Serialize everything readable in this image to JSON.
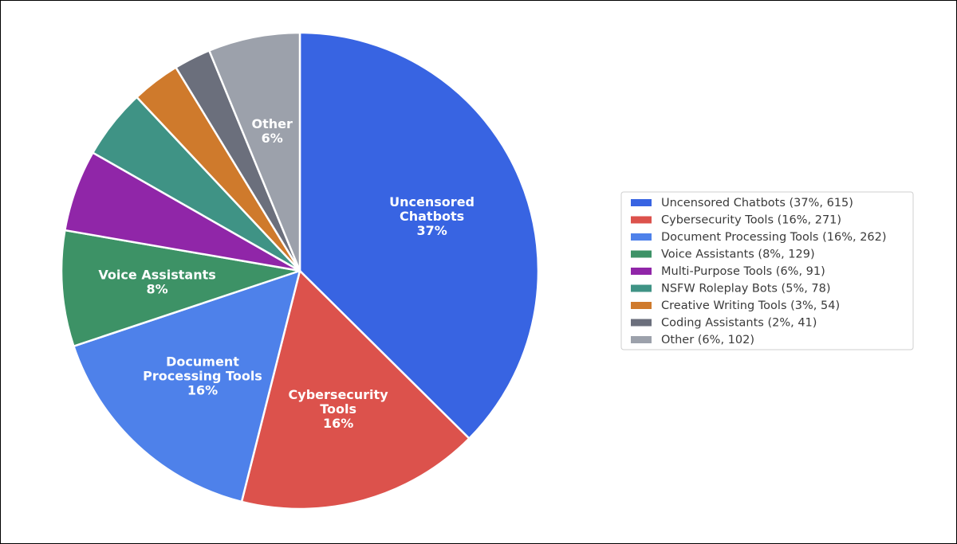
{
  "chart_data": {
    "type": "pie",
    "title": "",
    "start_angle_deg": 90,
    "direction": "clockwise",
    "legend_placement": "right",
    "slices": [
      {
        "name": "Uncensored Chatbots",
        "value": 615,
        "percent": "37%",
        "label_lines": [
          "Uncensored",
          "Chatbots",
          "37%"
        ],
        "legend_text": "Uncensored Chatbots  (37%, 615)",
        "color": "#3864e2"
      },
      {
        "name": "Cybersecurity Tools",
        "value": 271,
        "percent": "16%",
        "label_lines": [
          "Cybersecurity",
          "Tools",
          "16%"
        ],
        "legend_text": "Cybersecurity Tools  (16%, 271)",
        "color": "#dc524c"
      },
      {
        "name": "Document Processing Tools",
        "value": 262,
        "percent": "16%",
        "label_lines": [
          "Document",
          "Processing Tools",
          "16%"
        ],
        "legend_text": "Document Processing Tools  (16%, 262)",
        "color": "#4e81ea"
      },
      {
        "name": "Voice Assistants",
        "value": 129,
        "percent": "8%",
        "label_lines": [
          "Voice Assistants",
          "8%"
        ],
        "legend_text": "Voice Assistants  (8%, 129)",
        "color": "#3d9266"
      },
      {
        "name": "Multi-Purpose Tools",
        "value": 91,
        "percent": "6%",
        "label_lines": [],
        "legend_text": "Multi-Purpose Tools  (6%, 91)",
        "color": "#9026a8"
      },
      {
        "name": "NSFW Roleplay Bots",
        "value": 78,
        "percent": "5%",
        "label_lines": [],
        "legend_text": "NSFW Roleplay Bots  (5%, 78)",
        "color": "#3f9385"
      },
      {
        "name": "Creative Writing Tools",
        "value": 54,
        "percent": "3%",
        "label_lines": [],
        "legend_text": "Creative Writing Tools  (3%, 54)",
        "color": "#cf7a2c"
      },
      {
        "name": "Coding Assistants",
        "value": 41,
        "percent": "2%",
        "label_lines": [],
        "legend_text": "Coding Assistants  (2%, 41)",
        "color": "#6b6f7c"
      },
      {
        "name": "Other",
        "value": 102,
        "percent": "6%",
        "label_lines": [
          "Other",
          "6%"
        ],
        "legend_text": "Other  (6%, 102)",
        "color": "#9ca1ab"
      }
    ]
  }
}
